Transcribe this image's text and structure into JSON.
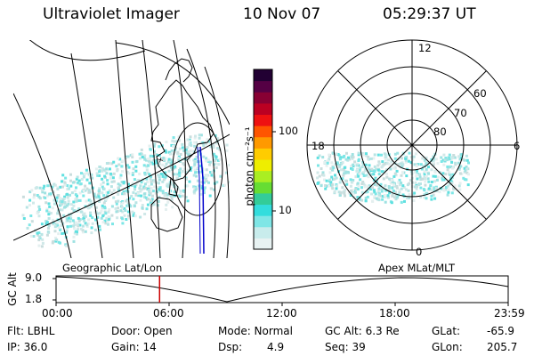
{
  "header": {
    "instrument": "Ultraviolet Imager",
    "date": "10 Nov 07",
    "time": "05:29:37 UT"
  },
  "colorbar": {
    "unit_label": "photon cm⁻²s⁻¹",
    "ticks": [
      "100",
      "10"
    ],
    "colors": [
      "#e8f2f2",
      "#c8ecec",
      "#7fe6e6",
      "#33dddd",
      "#33cc99",
      "#66dd33",
      "#aaee22",
      "#eeee00",
      "#ffcc00",
      "#ff9900",
      "#ff5500",
      "#ee1111",
      "#bb0022",
      "#880033",
      "#550044",
      "#220033"
    ]
  },
  "panels": {
    "left_label": "Geographic Lat/Lon",
    "right_label": "Apex MLat/MLT",
    "polar_labels": {
      "mlt_12": "12",
      "mlt_18": "18",
      "mlt_6": "6",
      "mlt_0": "0",
      "lat_60": "60",
      "lat_70": "70",
      "lat_80": "80"
    }
  },
  "timeline": {
    "ylabel": "GC Alt",
    "y_ticks": [
      "9.0",
      "1.8"
    ],
    "x_ticks": [
      "00:00",
      "06:00",
      "12:00",
      "18:00",
      "23:59"
    ],
    "marker_time": "05:29:37",
    "marker_fraction": 0.2289
  },
  "footer": {
    "flt": "Flt: LBHL",
    "ip": "IP: 36.0",
    "door": "Door: Open",
    "gain": "Gain: 14",
    "mode": "Mode: Normal",
    "dsp_label": "Dsp:",
    "dsp_value": "4.9",
    "gcalt": "GC Alt: 6.3 Re",
    "seq": "Seq: 39",
    "glat_label": "GLat:",
    "glat_value": "-65.9",
    "glon_label": "GLon:",
    "glon_value": "205.7"
  }
}
